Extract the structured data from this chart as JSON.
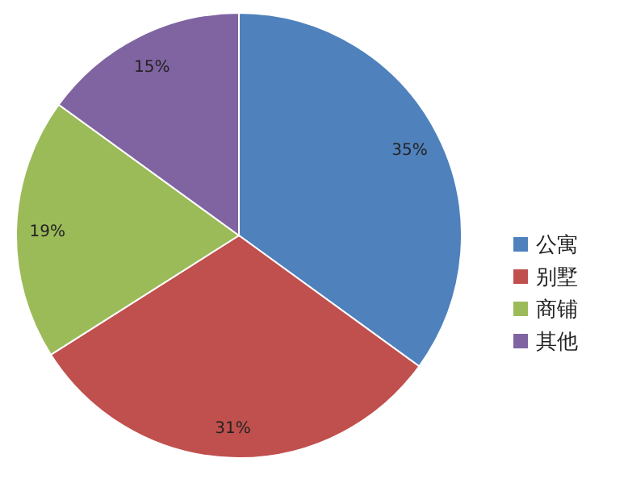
{
  "chart_data": {
    "type": "pie",
    "categories": [
      "公寓",
      "别墅",
      "商铺",
      "其他"
    ],
    "values": [
      35,
      31,
      19,
      15
    ],
    "colors": [
      "#4f81bd",
      "#c0504d",
      "#9bbb59",
      "#8064a2"
    ],
    "value_labels": [
      "35%",
      "31%",
      "19%",
      "15%"
    ],
    "legend": "right"
  }
}
